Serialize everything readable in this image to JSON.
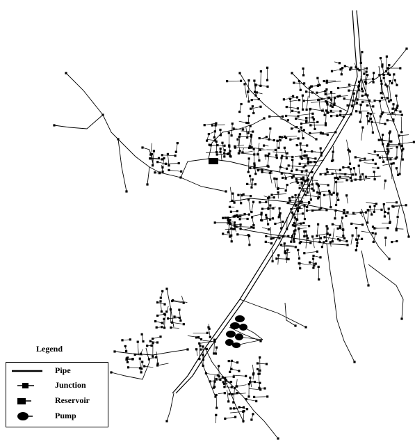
{
  "legend": {
    "title": "Legend",
    "items": [
      {
        "label": "Pipe",
        "icon": "pipe-line-icon"
      },
      {
        "label": "Junction",
        "icon": "junction-node-icon"
      },
      {
        "label": "Reservoir",
        "icon": "reservoir-icon"
      },
      {
        "label": "Pump",
        "icon": "pump-icon"
      }
    ]
  },
  "colors": {
    "ink": "#000000",
    "background": "#ffffff"
  }
}
